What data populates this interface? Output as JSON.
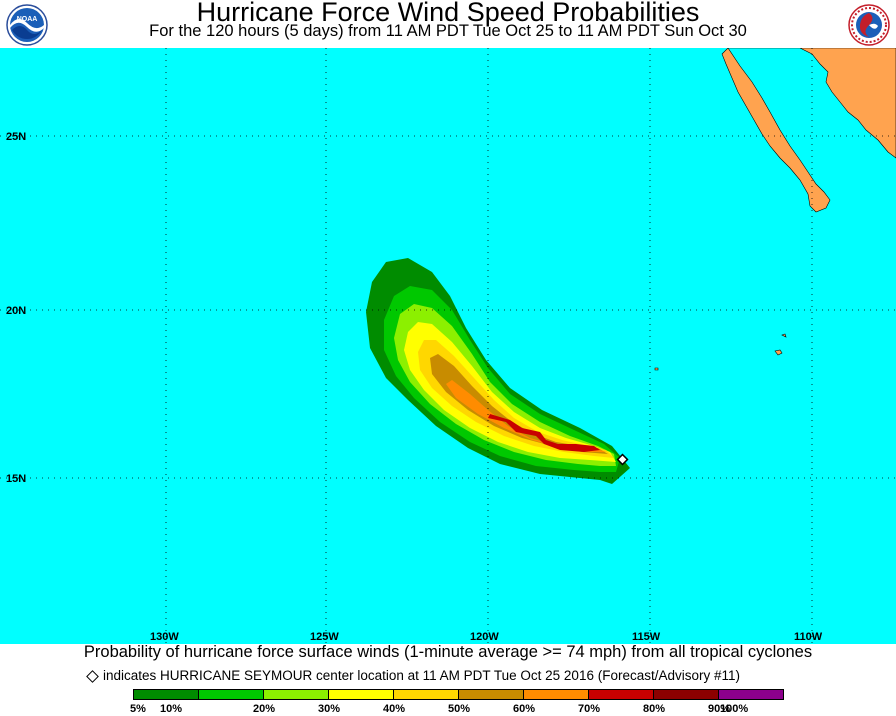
{
  "title": "Hurricane Force Wind Speed Probabilities",
  "subtitle": "For the 120 hours (5 days) from 11 AM PDT Tue Oct 25 to 11 AM PDT Sun Oct 30",
  "logos": {
    "left": "noaa-logo",
    "right": "national-weather-service-logo"
  },
  "colors": {
    "ocean": "#00ffff",
    "land": "#ffa34f",
    "grid": "#000000"
  },
  "map": {
    "lat_labels": [
      "25N",
      "20N",
      "15N"
    ],
    "lon_labels": [
      "130W",
      "125W",
      "120W",
      "115W",
      "110W"
    ],
    "storm_marker": "HURRICANE SEYMOUR"
  },
  "caption": "Probability of hurricane force surface winds (1-minute average >= 74 mph) from all tropical cyclones",
  "note": "indicates HURRICANE SEYMOUR center location at 11 AM PDT Tue Oct 25 2016 (Forecast/Advisory #11)",
  "legend": {
    "colors": [
      "#008c00",
      "#00c800",
      "#8cf000",
      "#ffff00",
      "#ffd700",
      "#c88c00",
      "#ff8c00",
      "#c80000",
      "#8c0000",
      "#8c008c"
    ],
    "labels": [
      "5%",
      "10%",
      "20%",
      "30%",
      "40%",
      "50%",
      "60%",
      "70%",
      "80%",
      "90%",
      "100%"
    ]
  }
}
